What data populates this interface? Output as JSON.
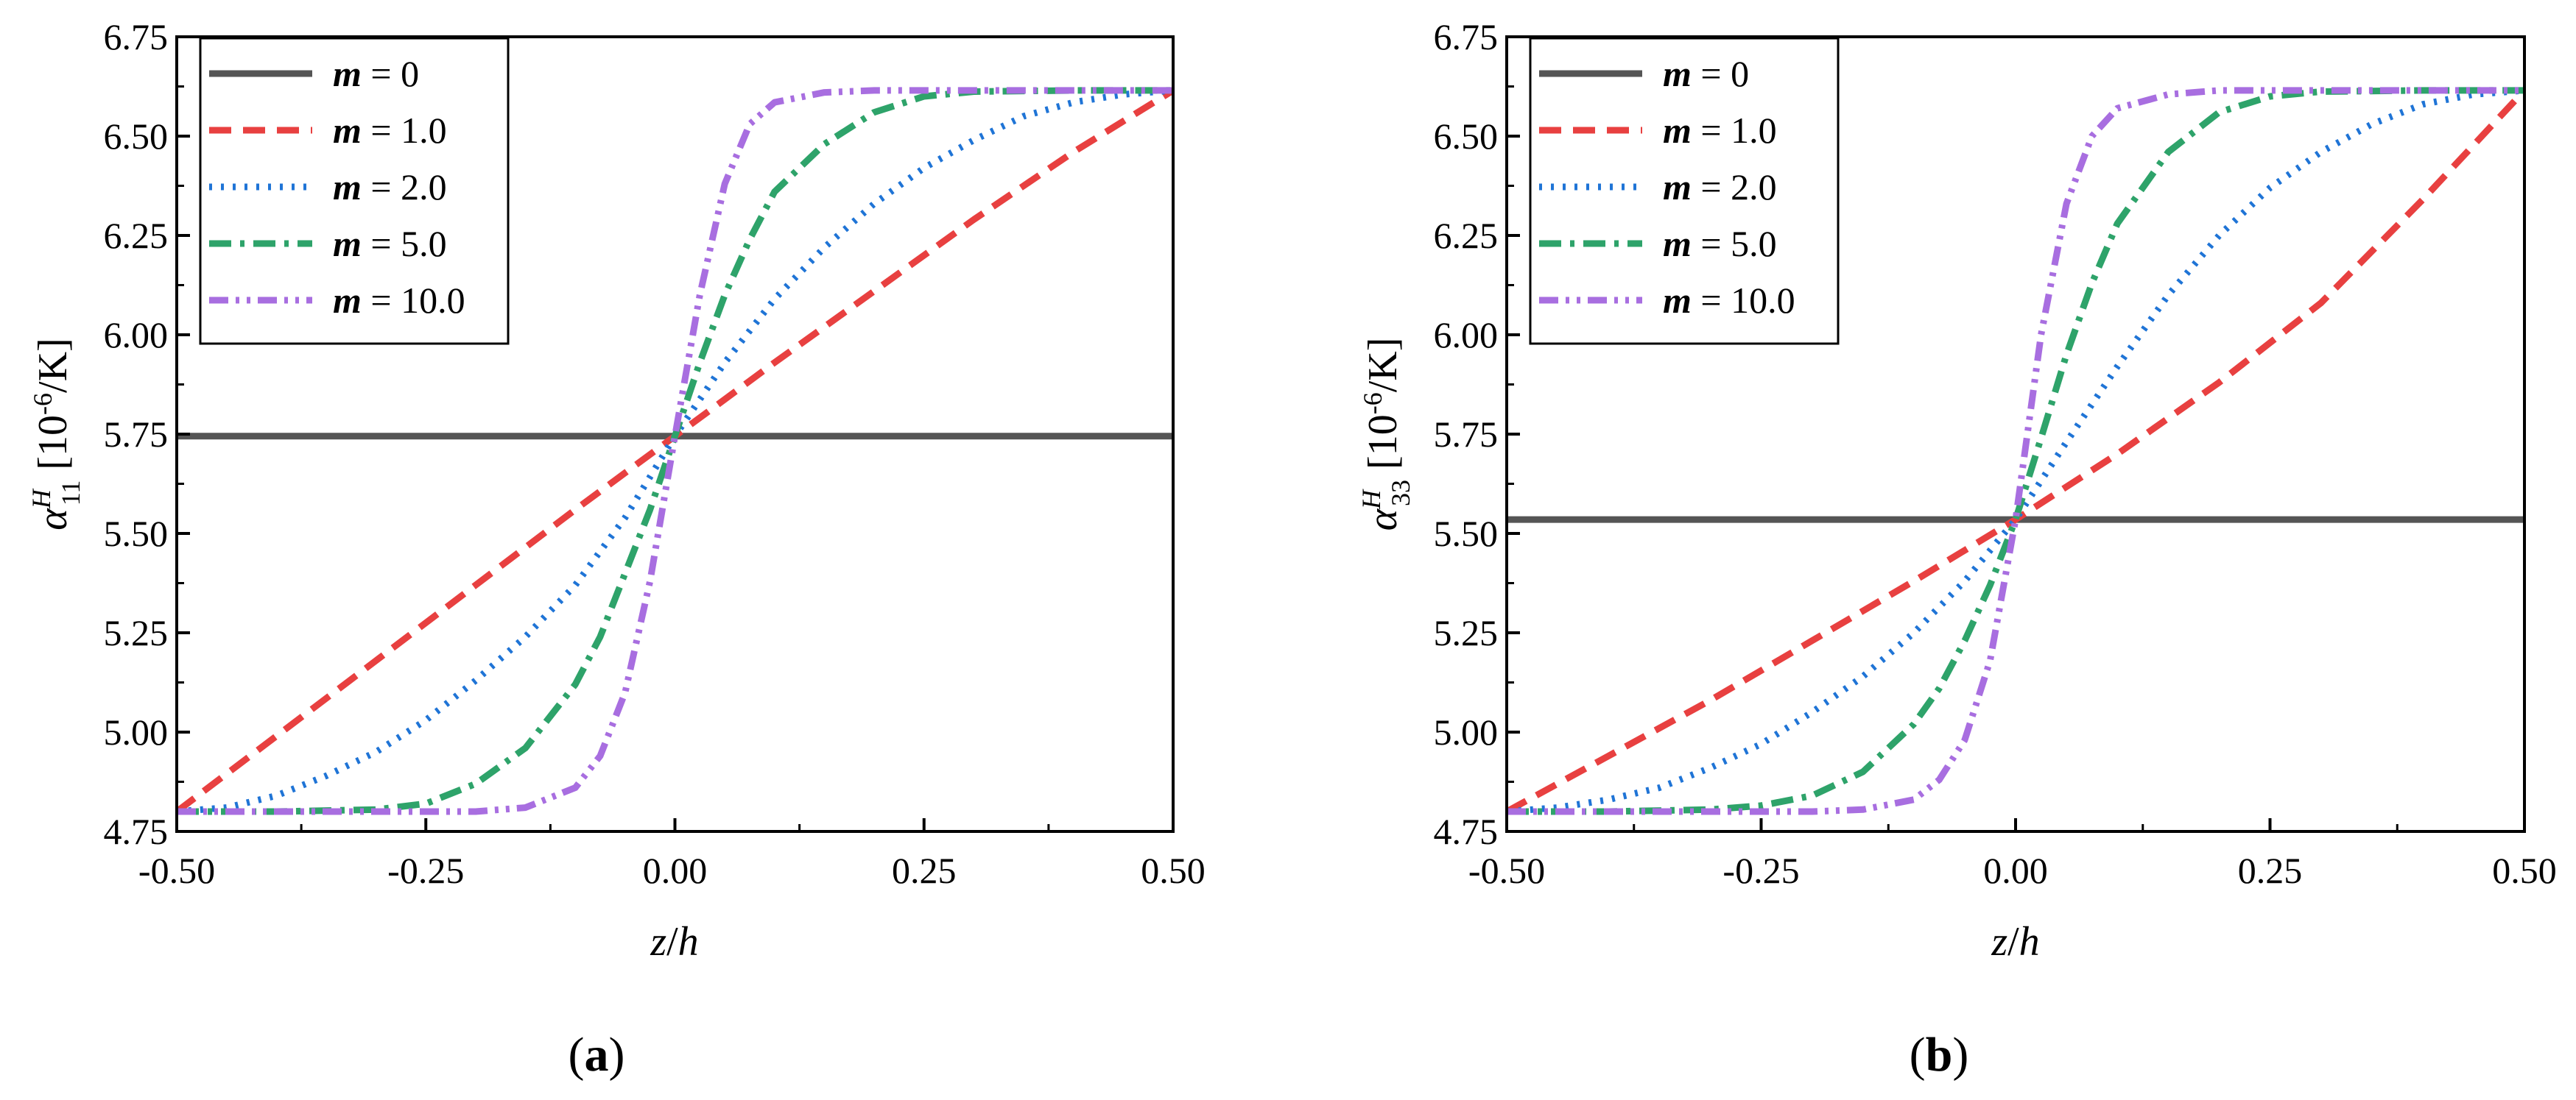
{
  "chart_data": [
    {
      "type": "line",
      "panel_label": "(a)",
      "panel_letter": "a",
      "xlabel_parts": {
        "z": "z",
        "slash": "/",
        "h": "h"
      },
      "ylabel_parts": {
        "symbol": "α",
        "sup": "H",
        "sub": "11",
        "unit_open": " [10",
        "unit_exp": "-6",
        "unit_close": "/K]"
      },
      "xlim": [
        -0.5,
        0.5
      ],
      "ylim": [
        4.75,
        6.75
      ],
      "xticks": [
        "-0.50",
        "-0.25",
        "0.00",
        "0.25",
        "0.50"
      ],
      "yticks": [
        "4.75",
        "5.00",
        "5.25",
        "5.50",
        "5.75",
        "6.00",
        "6.25",
        "6.50",
        "6.75"
      ],
      "legend_position": "top-left",
      "series": [
        {
          "name": "m = 0",
          "m": 0,
          "mlabel": "m",
          "eq": " = 0",
          "color": "#555555",
          "dash": "solid",
          "x": [
            -0.5,
            0.5
          ],
          "y": [
            5.745,
            5.745
          ]
        },
        {
          "name": "m = 1.0",
          "m": 1.0,
          "mlabel": "m",
          "eq": " = 1.0",
          "color": "#e84040",
          "dash": "dash",
          "x": [
            -0.5,
            -0.4,
            -0.3,
            -0.2,
            -0.1,
            0.0,
            0.1,
            0.2,
            0.3,
            0.4,
            0.5
          ],
          "y": [
            4.8,
            4.99,
            5.18,
            5.37,
            5.56,
            5.745,
            5.93,
            6.11,
            6.29,
            6.46,
            6.615
          ]
        },
        {
          "name": "m = 2.0",
          "m": 2.0,
          "mlabel": "m",
          "eq": " = 2.0",
          "color": "#1f74d6",
          "dash": "dot",
          "x": [
            -0.5,
            -0.45,
            -0.4,
            -0.35,
            -0.3,
            -0.25,
            -0.2,
            -0.15,
            -0.1,
            -0.05,
            0.0,
            0.05,
            0.1,
            0.15,
            0.2,
            0.25,
            0.3,
            0.35,
            0.4,
            0.45,
            0.5
          ],
          "y": [
            4.8,
            4.81,
            4.84,
            4.89,
            4.95,
            5.03,
            5.13,
            5.24,
            5.37,
            5.54,
            5.745,
            5.93,
            6.09,
            6.22,
            6.33,
            6.42,
            6.49,
            6.55,
            6.585,
            6.605,
            6.615
          ]
        },
        {
          "name": "m = 5.0",
          "m": 5.0,
          "mlabel": "m",
          "eq": " = 5.0",
          "color": "#2ea36a",
          "dash": "dashdot",
          "x": [
            -0.5,
            -0.4,
            -0.3,
            -0.25,
            -0.2,
            -0.15,
            -0.1,
            -0.075,
            -0.05,
            -0.025,
            0.0,
            0.025,
            0.05,
            0.075,
            0.1,
            0.15,
            0.2,
            0.25,
            0.3,
            0.4,
            0.5
          ],
          "y": [
            4.8,
            4.8,
            4.805,
            4.82,
            4.87,
            4.96,
            5.12,
            5.24,
            5.4,
            5.56,
            5.745,
            5.93,
            6.1,
            6.24,
            6.36,
            6.48,
            6.56,
            6.6,
            6.612,
            6.615,
            6.615
          ]
        },
        {
          "name": "m = 10.0",
          "m": 10.0,
          "mlabel": "m",
          "eq": " = 10.0",
          "color": "#a86ee0",
          "dash": "dashdotdot",
          "x": [
            -0.5,
            -0.3,
            -0.2,
            -0.15,
            -0.1,
            -0.075,
            -0.05,
            -0.025,
            0.0,
            0.025,
            0.05,
            0.075,
            0.1,
            0.15,
            0.2,
            0.3,
            0.5
          ],
          "y": [
            4.8,
            4.8,
            4.8,
            4.81,
            4.86,
            4.94,
            5.1,
            5.38,
            5.745,
            6.1,
            6.38,
            6.53,
            6.585,
            6.61,
            6.615,
            6.615,
            6.615
          ]
        }
      ]
    },
    {
      "type": "line",
      "panel_label": "(b)",
      "panel_letter": "b",
      "xlabel_parts": {
        "z": "z",
        "slash": "/",
        "h": "h"
      },
      "ylabel_parts": {
        "symbol": "α",
        "sup": "H",
        "sub": "33",
        "unit_open": " [10",
        "unit_exp": "-6",
        "unit_close": "/K]"
      },
      "xlim": [
        -0.5,
        0.5
      ],
      "ylim": [
        4.75,
        6.75
      ],
      "xticks": [
        "-0.50",
        "-0.25",
        "0.00",
        "0.25",
        "0.50"
      ],
      "yticks": [
        "4.75",
        "5.00",
        "5.25",
        "5.50",
        "5.75",
        "6.00",
        "6.25",
        "6.50",
        "6.75"
      ],
      "legend_position": "top-left",
      "series": [
        {
          "name": "m = 0",
          "m": 0,
          "mlabel": "m",
          "eq": " = 0",
          "color": "#555555",
          "dash": "solid",
          "x": [
            -0.5,
            0.5
          ],
          "y": [
            5.535,
            5.535
          ]
        },
        {
          "name": "m = 1.0",
          "m": 1.0,
          "mlabel": "m",
          "eq": " = 1.0",
          "color": "#e84040",
          "dash": "dash",
          "x": [
            -0.5,
            -0.4,
            -0.3,
            -0.2,
            -0.1,
            0.0,
            0.1,
            0.2,
            0.3,
            0.4,
            0.5
          ],
          "y": [
            4.8,
            4.94,
            5.08,
            5.23,
            5.38,
            5.535,
            5.7,
            5.88,
            6.08,
            6.34,
            6.615
          ]
        },
        {
          "name": "m = 2.0",
          "m": 2.0,
          "mlabel": "m",
          "eq": " = 2.0",
          "color": "#1f74d6",
          "dash": "dot",
          "x": [
            -0.5,
            -0.45,
            -0.4,
            -0.35,
            -0.3,
            -0.25,
            -0.2,
            -0.15,
            -0.1,
            -0.05,
            0.0,
            0.05,
            0.1,
            0.15,
            0.2,
            0.25,
            0.3,
            0.35,
            0.4,
            0.45,
            0.5
          ],
          "y": [
            4.8,
            4.81,
            4.83,
            4.86,
            4.91,
            4.97,
            5.05,
            5.14,
            5.25,
            5.38,
            5.535,
            5.73,
            5.92,
            6.1,
            6.25,
            6.37,
            6.46,
            6.53,
            6.58,
            6.605,
            6.615
          ]
        },
        {
          "name": "m = 5.0",
          "m": 5.0,
          "mlabel": "m",
          "eq": " = 5.0",
          "color": "#2ea36a",
          "dash": "dashdot",
          "x": [
            -0.5,
            -0.4,
            -0.3,
            -0.25,
            -0.2,
            -0.15,
            -0.1,
            -0.075,
            -0.05,
            -0.025,
            0.0,
            0.025,
            0.05,
            0.075,
            0.1,
            0.15,
            0.2,
            0.25,
            0.3,
            0.4,
            0.5
          ],
          "y": [
            4.8,
            4.8,
            4.805,
            4.815,
            4.84,
            4.9,
            5.02,
            5.11,
            5.23,
            5.37,
            5.535,
            5.74,
            5.95,
            6.13,
            6.28,
            6.46,
            6.56,
            6.6,
            6.612,
            6.615,
            6.615
          ]
        },
        {
          "name": "m = 10.0",
          "m": 10.0,
          "mlabel": "m",
          "eq": " = 10.0",
          "color": "#a86ee0",
          "dash": "dashdotdot",
          "x": [
            -0.5,
            -0.3,
            -0.2,
            -0.15,
            -0.1,
            -0.075,
            -0.05,
            -0.025,
            0.0,
            0.025,
            0.05,
            0.075,
            0.1,
            0.15,
            0.2,
            0.3,
            0.5
          ],
          "y": [
            4.8,
            4.8,
            4.8,
            4.805,
            4.83,
            4.88,
            4.98,
            5.18,
            5.535,
            6.0,
            6.33,
            6.5,
            6.57,
            6.605,
            6.615,
            6.615,
            6.615
          ]
        }
      ]
    }
  ]
}
